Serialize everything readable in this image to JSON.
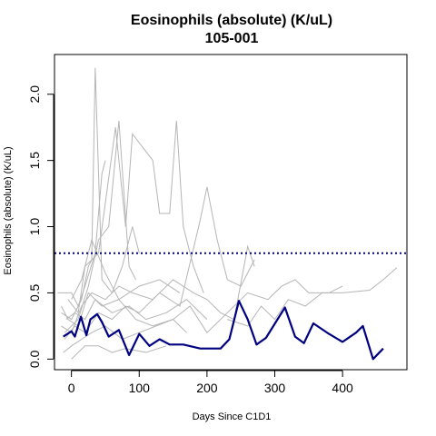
{
  "chart_data": {
    "type": "line",
    "title": "Eosinophils (absolute) (K/uL)",
    "subtitle": "105-001",
    "xlabel": "Days Since C1D1",
    "ylabel": "Eosinophils (absolute) (K/uL)",
    "xlim": [
      -25,
      495
    ],
    "ylim": [
      -0.08,
      2.3
    ],
    "x_ticks": [
      0,
      100,
      200,
      300,
      400
    ],
    "y_ticks": [
      0.0,
      0.5,
      1.0,
      1.5,
      2.0
    ],
    "y_tick_labels": [
      "0.0",
      "0.5",
      "1.0",
      "1.5",
      "2.0"
    ],
    "grid": false,
    "reference_line": {
      "y": 0.8,
      "style": "dotted",
      "color": "#000080"
    },
    "highlight_series": {
      "color": "#000080",
      "points": [
        [
          -12,
          0.17
        ],
        [
          0,
          0.21
        ],
        [
          5,
          0.17
        ],
        [
          14,
          0.32
        ],
        [
          22,
          0.18
        ],
        [
          28,
          0.3
        ],
        [
          38,
          0.34
        ],
        [
          45,
          0.28
        ],
        [
          55,
          0.17
        ],
        [
          70,
          0.22
        ],
        [
          85,
          0.03
        ],
        [
          100,
          0.19
        ],
        [
          115,
          0.1
        ],
        [
          130,
          0.15
        ],
        [
          145,
          0.11
        ],
        [
          165,
          0.11
        ],
        [
          190,
          0.08
        ],
        [
          220,
          0.08
        ],
        [
          233,
          0.15
        ],
        [
          247,
          0.44
        ],
        [
          260,
          0.3
        ],
        [
          273,
          0.11
        ],
        [
          287,
          0.16
        ],
        [
          315,
          0.39
        ],
        [
          330,
          0.17
        ],
        [
          343,
          0.12
        ],
        [
          357,
          0.27
        ],
        [
          380,
          0.19
        ],
        [
          400,
          0.13
        ],
        [
          420,
          0.2
        ],
        [
          430,
          0.25
        ],
        [
          445,
          0.0
        ],
        [
          460,
          0.08
        ]
      ]
    },
    "background_series": {
      "color": "#b5b5b5",
      "series": [
        [
          [
            -20,
            0.5
          ],
          [
            0,
            0.5
          ],
          [
            10,
            0.4
          ],
          [
            20,
            0.55
          ],
          [
            35,
            0.8
          ],
          [
            45,
            1.4
          ],
          [
            50,
            1.5
          ]
        ],
        [
          [
            -15,
            0.35
          ],
          [
            0,
            0.3
          ],
          [
            15,
            0.45
          ],
          [
            25,
            0.7
          ],
          [
            30,
            0.75
          ],
          [
            35,
            2.2
          ],
          [
            45,
            0.6
          ],
          [
            60,
            0.5
          ],
          [
            75,
            0.7
          ],
          [
            90,
            1.0
          ],
          [
            100,
            0.8
          ]
        ],
        [
          [
            -10,
            0.2
          ],
          [
            10,
            0.3
          ],
          [
            25,
            0.55
          ],
          [
            40,
            0.9
          ],
          [
            55,
            1.0
          ],
          [
            70,
            1.8
          ],
          [
            85,
            0.7
          ],
          [
            95,
            0.6
          ]
        ],
        [
          [
            -5,
            0.45
          ],
          [
            10,
            0.35
          ],
          [
            20,
            0.7
          ],
          [
            40,
            0.8
          ],
          [
            65,
            1.75
          ],
          [
            80,
            1.0
          ],
          [
            90,
            1.7
          ],
          [
            105,
            1.6
          ],
          [
            120,
            1.5
          ],
          [
            130,
            1.1
          ],
          [
            145,
            1.1
          ],
          [
            155,
            1.8
          ],
          [
            165,
            1.0
          ],
          [
            180,
            0.7
          ],
          [
            195,
            0.5
          ]
        ],
        [
          [
            -15,
            0.25
          ],
          [
            0,
            0.2
          ],
          [
            15,
            0.4
          ],
          [
            30,
            0.5
          ],
          [
            50,
            0.45
          ],
          [
            70,
            0.55
          ],
          [
            90,
            0.5
          ],
          [
            120,
            0.45
          ],
          [
            150,
            0.6
          ],
          [
            180,
            0.5
          ],
          [
            200,
            0.45
          ],
          [
            220,
            0.35
          ],
          [
            240,
            0.3
          ],
          [
            260,
            0.85
          ],
          [
            270,
            0.7
          ]
        ],
        [
          [
            -10,
            0.15
          ],
          [
            5,
            0.25
          ],
          [
            20,
            0.2
          ],
          [
            40,
            0.35
          ],
          [
            60,
            0.3
          ],
          [
            80,
            0.4
          ],
          [
            100,
            0.35
          ],
          [
            130,
            0.5
          ],
          [
            160,
            0.4
          ],
          [
            190,
            1.05
          ],
          [
            200,
            1.3
          ],
          [
            215,
            0.9
          ],
          [
            230,
            0.6
          ],
          [
            250,
            0.55
          ],
          [
            270,
            0.75
          ]
        ],
        [
          [
            -15,
            0.4
          ],
          [
            -5,
            0.3
          ],
          [
            10,
            0.25
          ],
          [
            25,
            0.5
          ],
          [
            45,
            0.4
          ],
          [
            70,
            0.45
          ],
          [
            95,
            0.3
          ],
          [
            120,
            0.25
          ],
          [
            150,
            0.3
          ],
          [
            170,
            0.2
          ]
        ],
        [
          [
            -12,
            0.05
          ],
          [
            0,
            0.1
          ],
          [
            15,
            0.15
          ],
          [
            30,
            0.2
          ],
          [
            50,
            0.25
          ],
          [
            75,
            0.15
          ],
          [
            100,
            0.2
          ],
          [
            125,
            0.25
          ],
          [
            150,
            0.3
          ],
          [
            175,
            0.4
          ],
          [
            200,
            0.2
          ],
          [
            230,
            0.35
          ],
          [
            260,
            0.5
          ],
          [
            290,
            0.45
          ],
          [
            310,
            0.55
          ],
          [
            330,
            0.6
          ],
          [
            350,
            0.5
          ],
          [
            380,
            0.5
          ],
          [
            400,
            0.55
          ]
        ],
        [
          [
            -8,
            0.3
          ],
          [
            5,
            0.35
          ],
          [
            20,
            0.3
          ],
          [
            35,
            0.45
          ],
          [
            60,
            0.35
          ],
          [
            85,
            0.4
          ],
          [
            110,
            0.3
          ],
          [
            140,
            0.35
          ],
          [
            170,
            0.45
          ],
          [
            200,
            0.3
          ]
        ],
        [
          [
            0,
            0.45
          ],
          [
            15,
            0.6
          ],
          [
            30,
            0.9
          ],
          [
            50,
            0.65
          ],
          [
            70,
            0.45
          ],
          [
            100,
            0.55
          ],
          [
            130,
            0.6
          ],
          [
            160,
            0.5
          ]
        ],
        [
          [
            230,
            0.3
          ],
          [
            260,
            0.25
          ],
          [
            280,
            0.4
          ],
          [
            300,
            0.3
          ],
          [
            320,
            0.45
          ],
          [
            345,
            0.4
          ],
          [
            370,
            0.5
          ],
          [
            400,
            0.5
          ],
          [
            440,
            0.52
          ],
          [
            460,
            0.6
          ],
          [
            480,
            0.69
          ]
        ],
        [
          [
            0,
            0.0
          ],
          [
            10,
            0.05
          ],
          [
            20,
            0.1
          ],
          [
            40,
            0.1
          ],
          [
            60,
            0.05
          ],
          [
            80,
            0.08
          ],
          [
            110,
            0.05
          ],
          [
            140,
            0.1
          ]
        ]
      ]
    }
  }
}
